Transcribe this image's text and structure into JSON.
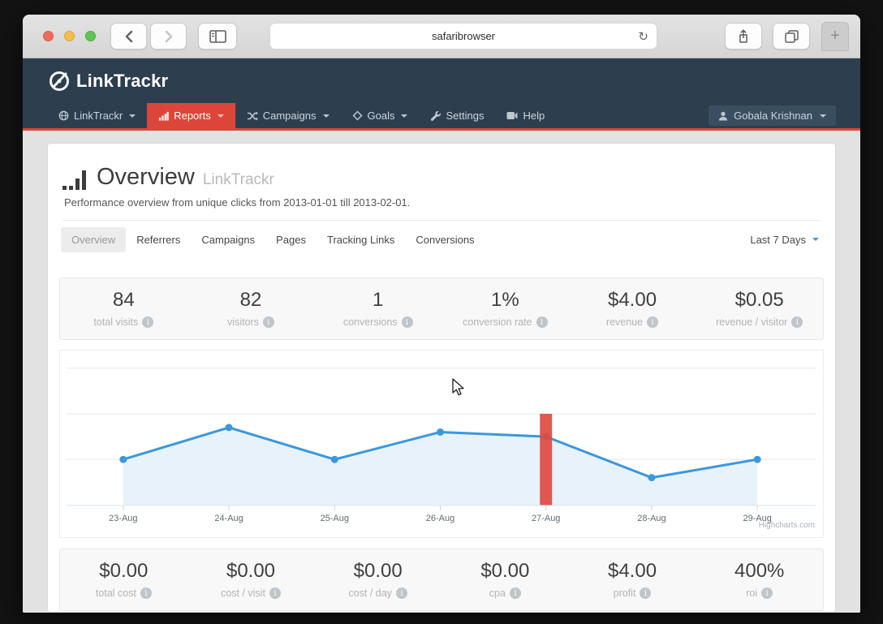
{
  "browser": {
    "url_text": "safaribrowser"
  },
  "icons": {
    "reload": "↻",
    "plus": "+",
    "info": "i"
  },
  "site": {
    "brand": "LinkTrackr",
    "nav": {
      "items": [
        {
          "label": "LinkTrackr"
        },
        {
          "label": "Reports"
        },
        {
          "label": "Campaigns"
        },
        {
          "label": "Goals"
        },
        {
          "label": "Settings"
        },
        {
          "label": "Help"
        }
      ],
      "active_item": "Reports"
    },
    "user": {
      "name": "Gobala Krishnan"
    }
  },
  "page": {
    "title": "Overview",
    "title_suffix": "LinkTrackr",
    "subtitle": "Performance overview from unique clicks from 2013-01-01 till 2013-02-01.",
    "tabs": [
      "Overview",
      "Referrers",
      "Campaigns",
      "Pages",
      "Tracking Links",
      "Conversions"
    ],
    "active_tab": "Overview",
    "date_range": "Last 7 Days",
    "stats_top": [
      {
        "value": "84",
        "label": "total visits"
      },
      {
        "value": "82",
        "label": "visitors"
      },
      {
        "value": "1",
        "label": "conversions"
      },
      {
        "value": "1%",
        "label": "conversion rate"
      },
      {
        "value": "$4.00",
        "label": "revenue"
      },
      {
        "value": "$0.05",
        "label": "revenue / visitor"
      }
    ],
    "stats_bottom": [
      {
        "value": "$0.00",
        "label": "total cost"
      },
      {
        "value": "$0.00",
        "label": "cost / visit"
      },
      {
        "value": "$0.00",
        "label": "cost / day"
      },
      {
        "value": "$0.00",
        "label": "cpa"
      },
      {
        "value": "$4.00",
        "label": "profit"
      },
      {
        "value": "400%",
        "label": "roi"
      }
    ]
  },
  "chart_data": {
    "type": "area",
    "x": [
      "23-Aug",
      "24-Aug",
      "25-Aug",
      "26-Aug",
      "27-Aug",
      "28-Aug",
      "29-Aug"
    ],
    "series": [
      {
        "name": "visits",
        "type": "area",
        "color": "#3b97dd",
        "fill": "#e8f2fa",
        "values": [
          10,
          17,
          10,
          16,
          15,
          6,
          10
        ]
      },
      {
        "name": "highlight",
        "type": "column",
        "color": "#e0493f",
        "values": [
          null,
          null,
          null,
          null,
          20,
          null,
          null
        ]
      }
    ],
    "ylim": [
      0,
      30
    ],
    "grid_interval": 10,
    "grid": true,
    "yaxis_labels_visible": false,
    "legend": "none",
    "credits": "Highcharts.com"
  }
}
